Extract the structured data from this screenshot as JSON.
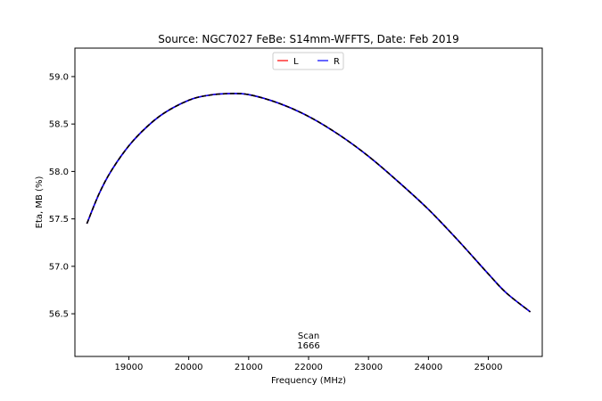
{
  "chart_data": {
    "type": "line",
    "title": "Source: NGC7027 FeBe: S14mm-WFFTS, Date: Feb 2019",
    "xlabel": "Frequency (MHz)",
    "ylabel": "Eta, MB (%)",
    "xlim": [
      18100,
      25900
    ],
    "ylim": [
      56.05,
      59.3
    ],
    "x_ticks": [
      19000,
      20000,
      21000,
      22000,
      23000,
      24000,
      25000
    ],
    "x_tick_labels": [
      "19000",
      "20000",
      "21000",
      "22000",
      "23000",
      "24000",
      "25000"
    ],
    "y_ticks": [
      56.5,
      57.0,
      57.5,
      58.0,
      58.5,
      59.0
    ],
    "y_tick_labels": [
      "56.5",
      "57.0",
      "57.5",
      "58.0",
      "58.5",
      "59.0"
    ],
    "grid": false,
    "legend_position": "top-center",
    "annotation": {
      "line1": "Scan",
      "line2": "1666"
    },
    "series": [
      {
        "name": "L",
        "color": "#ff0000",
        "x": [
          18300,
          18500,
          18700,
          19000,
          19300,
          19600,
          20000,
          20300,
          20650,
          21000,
          21500,
          22000,
          22500,
          23000,
          23500,
          24000,
          24500,
          25000,
          25300,
          25700
        ],
        "y": [
          57.45,
          57.76,
          58.0,
          58.27,
          58.47,
          58.62,
          58.75,
          58.8,
          58.82,
          58.81,
          58.72,
          58.58,
          58.39,
          58.16,
          57.89,
          57.6,
          57.27,
          56.92,
          56.72,
          56.52
        ]
      },
      {
        "name": "R",
        "color": "#0000ff",
        "x": [
          18300,
          18500,
          18700,
          19000,
          19300,
          19600,
          20000,
          20300,
          20650,
          21000,
          21500,
          22000,
          22500,
          23000,
          23500,
          24000,
          24500,
          25000,
          25300,
          25700
        ],
        "y": [
          57.45,
          57.76,
          58.0,
          58.27,
          58.47,
          58.62,
          58.75,
          58.8,
          58.82,
          58.81,
          58.72,
          58.58,
          58.39,
          58.16,
          57.89,
          57.6,
          57.27,
          56.92,
          56.72,
          56.52
        ]
      }
    ]
  }
}
